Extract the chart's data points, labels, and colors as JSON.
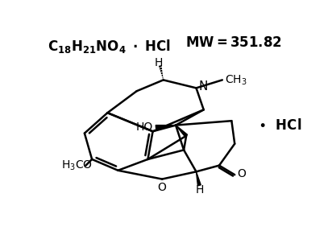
{
  "background_color": "#ffffff",
  "line_color": "#000000",
  "linewidth": 1.8,
  "formula": "C_{18}H_{21}NO_4",
  "formula_hcl": "\\u2022 HCl",
  "mw": "MW = 351.82",
  "hcl_right": "\\u2022 HCl"
}
